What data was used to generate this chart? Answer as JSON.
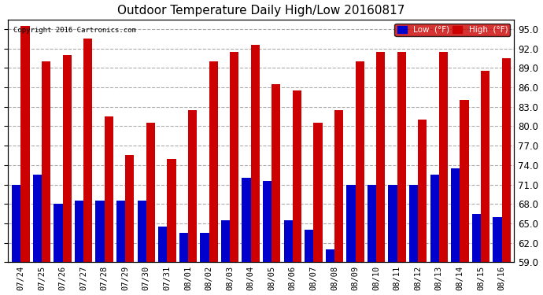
{
  "title": "Outdoor Temperature Daily High/Low 20160817",
  "copyright": "Copyright 2016 Cartronics.com",
  "legend_low": "Low  (°F)",
  "legend_high": "High  (°F)",
  "dates": [
    "07/24",
    "07/25",
    "07/26",
    "07/27",
    "07/28",
    "07/29",
    "07/30",
    "07/31",
    "08/01",
    "08/02",
    "08/03",
    "08/04",
    "08/05",
    "08/06",
    "08/07",
    "08/08",
    "08/09",
    "08/10",
    "08/11",
    "08/12",
    "08/13",
    "08/14",
    "08/15",
    "08/16"
  ],
  "highs": [
    95.5,
    90.0,
    91.0,
    93.5,
    81.5,
    75.5,
    80.5,
    75.0,
    82.5,
    90.0,
    91.5,
    92.5,
    86.5,
    85.5,
    80.5,
    82.5,
    90.0,
    91.5,
    91.5,
    81.0,
    91.5,
    84.0,
    88.5,
    90.5
  ],
  "lows": [
    71.0,
    72.5,
    68.0,
    68.5,
    68.5,
    68.5,
    68.5,
    64.5,
    63.5,
    63.5,
    65.5,
    72.0,
    71.5,
    65.5,
    64.0,
    61.0,
    71.0,
    71.0,
    71.0,
    71.0,
    72.5,
    73.5,
    66.5,
    66.0
  ],
  "low_color": "#0000cc",
  "high_color": "#cc0000",
  "bg_color": "#ffffff",
  "grid_color": "#aaaaaa",
  "ylim_min": 59.0,
  "ylim_max": 96.5,
  "yticks": [
    59.0,
    62.0,
    65.0,
    68.0,
    71.0,
    74.0,
    77.0,
    80.0,
    83.0,
    86.0,
    89.0,
    92.0,
    95.0
  ],
  "bar_width": 0.42
}
